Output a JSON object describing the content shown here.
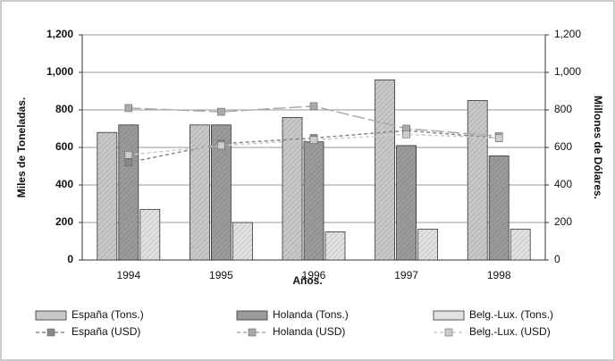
{
  "chart_data": {
    "type": "bar",
    "x_label": "Años.",
    "y_label": "Miles de Toneladas.",
    "y2_label": "Millones de Dólares.",
    "categories": [
      "1994",
      "1995",
      "1996",
      "1997",
      "1998"
    ],
    "series": [
      {
        "name": "España (Tons.)",
        "type": "bar",
        "color": "#c8c8c8",
        "values": [
          680,
          720,
          760,
          960,
          850
        ]
      },
      {
        "name": "Holanda (Tons.)",
        "type": "bar",
        "color": "#9a9a9a",
        "values": [
          720,
          720,
          630,
          610,
          555
        ]
      },
      {
        "name": "Belg.-Lux. (Tons.)",
        "type": "bar",
        "color": "#e2e2e2",
        "values": [
          270,
          200,
          150,
          165,
          165
        ]
      },
      {
        "name": "España (USD)",
        "type": "line",
        "axis": "y2",
        "color": "#888888",
        "values": [
          520,
          620,
          650,
          690,
          650
        ]
      },
      {
        "name": "Holanda (USD)",
        "type": "line",
        "axis": "y2",
        "color": "#aaaaaa",
        "values": [
          810,
          790,
          820,
          700,
          660
        ]
      },
      {
        "name": "Belg.-Lux. (USD)",
        "type": "line",
        "axis": "y2",
        "color": "#cccccc",
        "values": [
          560,
          610,
          640,
          670,
          650
        ]
      }
    ],
    "ylim": [
      0,
      1200
    ],
    "yticks": [
      0,
      200,
      400,
      600,
      800,
      {
        "value": 1000,
        "label": "1,000"
      },
      {
        "value": 1200,
        "label": "1,200"
      }
    ],
    "y2lim": [
      0,
      1200
    ],
    "y2ticks": [
      0,
      200,
      400,
      600,
      800,
      {
        "value": 1000,
        "label": "1,000"
      },
      {
        "value": 1200,
        "label": "1,200"
      }
    ],
    "grid": true,
    "legend": "bottom"
  }
}
